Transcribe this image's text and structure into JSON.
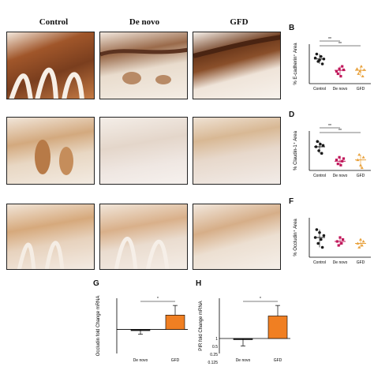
{
  "columns": [
    "Control",
    "De novo",
    "GFD"
  ],
  "panels": {
    "B": "B",
    "D": "D",
    "F": "F",
    "G": "G",
    "H": "H"
  },
  "colors": {
    "control": "#1a1a1a",
    "denovo": "#c0185b",
    "gfd": "#e8a13c",
    "bar_gfd": "#f07f22",
    "stain_dark": "#7a3e1e",
    "stain_light": "#d9b08a"
  },
  "chart_data": [
    {
      "id": "B",
      "type": "scatter",
      "ylabel": "% E-cadherin⁺ Area",
      "categories": [
        "Control",
        "De novo",
        "GFD"
      ],
      "ylim": [
        0,
        80
      ],
      "series": [
        {
          "values": [
            [
              52,
              60,
              45,
              48,
              55,
              40,
              50
            ]
          ],
          "mean": 50
        },
        {
          "values": [
            [
              25,
              20,
              30,
              15,
              35,
              28
            ]
          ],
          "mean": 27
        },
        {
          "values": [
            [
              30,
              20,
              25,
              35,
              15,
              28
            ]
          ],
          "mean": 27
        }
      ],
      "significance": [
        {
          "from": "Control",
          "to": "De novo",
          "label": "**"
        },
        {
          "from": "Control",
          "to": "GFD",
          "label": "**"
        }
      ]
    },
    {
      "id": "D",
      "type": "scatter",
      "ylabel": "% Claudin-1⁺ Area",
      "categories": [
        "Control",
        "De novo",
        "GFD"
      ],
      "ylim": [
        0,
        30
      ],
      "series": [
        {
          "values": [
            [
              18,
              22,
              15,
              20,
              13,
              19
            ]
          ],
          "mean": 18
        },
        {
          "values": [
            [
              8,
              5,
              10,
              4,
              7,
              9
            ]
          ],
          "mean": 7
        },
        {
          "values": [
            [
              8,
              12,
              4,
              2,
              10
            ]
          ],
          "mean": 8
        }
      ],
      "significance": [
        {
          "from": "Control",
          "to": "De novo",
          "label": "**"
        },
        {
          "from": "Control",
          "to": "GFD",
          "label": "**"
        }
      ]
    },
    {
      "id": "F",
      "type": "scatter",
      "ylabel": "% Occludin⁺ Area",
      "categories": [
        "Control",
        "De novo",
        "GFD"
      ],
      "ylim": [
        0,
        40
      ],
      "series": [
        {
          "values": [
            [
              20,
              28,
              14,
              25,
              18,
              10,
              22
            ]
          ],
          "mean": 20
        },
        {
          "values": [
            [
              16,
              12,
              20,
              14,
              18
            ]
          ],
          "mean": 16
        },
        {
          "values": [
            [
              14,
              10,
              18,
              12,
              16
            ]
          ],
          "mean": 14
        }
      ],
      "significance": []
    },
    {
      "id": "G",
      "type": "bar",
      "ylabel": "Occludin fold Change mRNA",
      "categories": [
        "De novo",
        "GFD"
      ],
      "values": [
        1.0,
        1.6
      ],
      "errors": [
        0.2,
        0.4
      ],
      "significance": [
        {
          "from": "De novo",
          "to": "GFD",
          "label": "*"
        }
      ]
    },
    {
      "id": "H",
      "type": "bar",
      "ylabel": "PIR fold Change mRNA",
      "categories": [
        "De novo",
        "GFD"
      ],
      "values": [
        1.0,
        2.5
      ],
      "errors": [
        0.5,
        0.7
      ],
      "yticks": [
        "1",
        "0.5",
        "0.25",
        "0.125"
      ],
      "significance": [
        {
          "from": "De novo",
          "to": "GFD",
          "label": "*"
        }
      ]
    }
  ]
}
